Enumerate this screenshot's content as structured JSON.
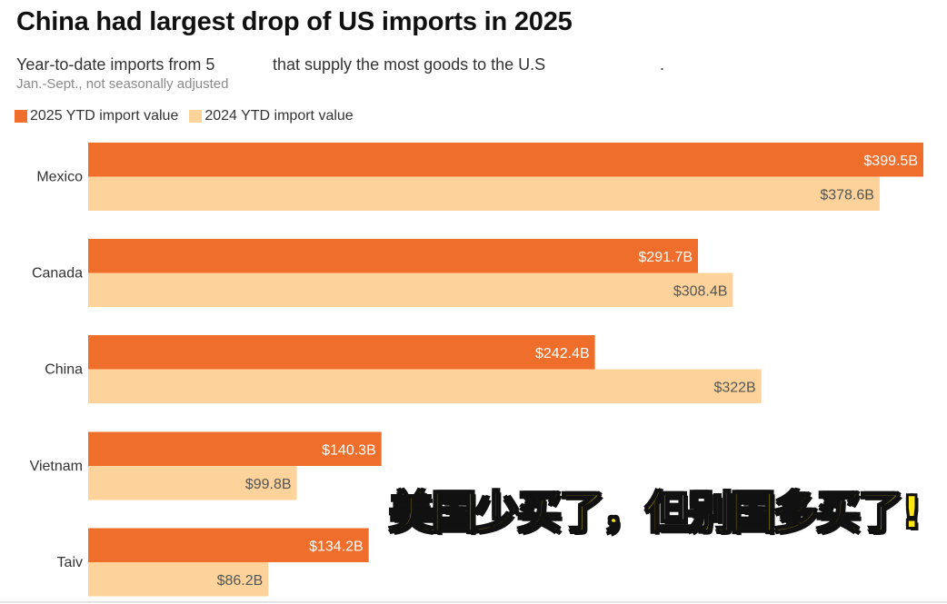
{
  "title": "China had largest drop of US imports in 2025",
  "subtitle_part1": "Year-to-date imports from 5",
  "subtitle_part2": "that supply the most goods to the U.S",
  "subtitle_part3": ".",
  "note": "Jan.-Sept., not seasonally adjusted",
  "overlay_text": "美国少买了，但别国多买了!",
  "colors": {
    "series_2025": "#f06e2b",
    "series_2024": "#fdd39b",
    "overlay_fill": "#ffe614"
  },
  "chart_data": {
    "type": "bar",
    "orientation": "horizontal",
    "title": "China had largest drop of US imports in 2025",
    "categories": [
      "Mexico",
      "Canada",
      "China",
      "Vietnam",
      "Taiv"
    ],
    "series": [
      {
        "name": "2025 YTD import value",
        "values": [
          399.5,
          291.7,
          242.4,
          140.3,
          134.2
        ],
        "labels": [
          "$399.5B",
          "$291.7B",
          "$242.4B",
          "$140.3B",
          "$134.2B"
        ]
      },
      {
        "name": "2024 YTD import value",
        "values": [
          378.6,
          308.4,
          322,
          99.8,
          86.2
        ],
        "labels": [
          "$378.6B",
          "$308.4B",
          "$322B",
          "$99.8B",
          "$86.2B"
        ]
      }
    ],
    "xlim": [
      0,
      399.5
    ],
    "unit": "billion USD",
    "legend": "top-left",
    "grid": false
  }
}
